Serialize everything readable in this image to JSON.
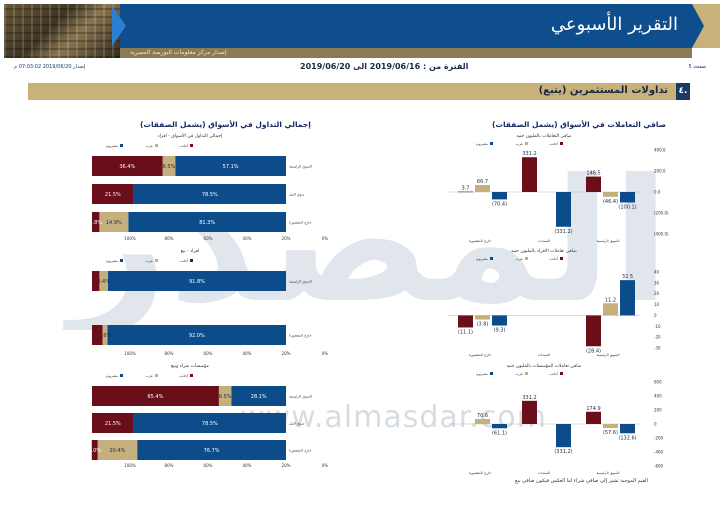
{
  "header": {
    "title": "التقرير الأسبوعي",
    "subtitle_strip": "إصدار مركز معلومات البورصة المصرية",
    "page_label": "صفحة 5",
    "period": "الفترة من : 2019/06/16 الى 2019/06/20",
    "issued": "إصدار 2019/06/20 07:03:02 م"
  },
  "section": {
    "number": "٤.",
    "title": "تداولات المستثمرين   (يتبع)"
  },
  "watermark": {
    "url": "www.almasdar.com",
    "word": "المصدر"
  },
  "left_title": "إجمالي التداول في الأسواق (يشمل الصفقات)",
  "right_title": "صافي التعاملات في الأسواق (يشمل الصفقات)",
  "footnote": "القيم الموجبة تشير إلى صافي شراء اما العكس فيكون صافي بيع",
  "colors": {
    "egyptian": "#0d4c8b",
    "arab": "#c5b07d",
    "foreign": "#6a0f1a"
  },
  "legend": {
    "egyptian": "مصريون",
    "arab": "عرب",
    "foreign": "أجانب"
  },
  "chart_data": [
    {
      "type": "bar",
      "orientation": "horizontal-stacked",
      "title": "إجمالي التداول في الأسواق - افراد",
      "categories": [
        "السوق الرئيسية",
        "سوق النيل",
        "خارج المقصورة"
      ],
      "series": [
        {
          "name": "مصريون",
          "values": [
            57.1,
            78.5,
            81.3
          ]
        },
        {
          "name": "عرب",
          "values": [
            6.5,
            0,
            14.9
          ]
        },
        {
          "name": "أجانب",
          "values": [
            36.4,
            21.5,
            3.8
          ]
        }
      ],
      "value_labels": [
        [
          "57.1%",
          "6.5%",
          "36.4%"
        ],
        [
          "78.5%",
          "",
          "21.5%"
        ],
        [
          "81.3%",
          "14.9%",
          "3.8%"
        ]
      ],
      "xticks": [
        "100%",
        "80%",
        "60%",
        "40%",
        "20%",
        "0%"
      ]
    },
    {
      "type": "bar",
      "orientation": "horizontal-stacked",
      "title": "افراد - بيع",
      "categories": [
        "السوق الرئيسية",
        "خارج المقصورة"
      ],
      "series": [
        {
          "name": "مصريون",
          "values": [
            91.8,
            92.0
          ]
        },
        {
          "name": "عرب",
          "values": [
            4.4,
            2.6
          ]
        },
        {
          "name": "أجانب",
          "values": [
            3.8,
            5.4
          ]
        }
      ],
      "value_labels": [
        [
          "91.8%",
          "4.4%",
          ""
        ],
        [
          "92.0%",
          "2.6%",
          ""
        ]
      ],
      "xticks": [
        "100%",
        "80%",
        "60%",
        "40%",
        "20%",
        "0%"
      ]
    },
    {
      "type": "bar",
      "orientation": "horizontal-stacked",
      "title": "مؤسسات شراء وبيع",
      "categories": [
        "السوق الرئيسية",
        "سوق النيل",
        "خارج المقصورة"
      ],
      "series": [
        {
          "name": "مصريون",
          "values": [
            28.1,
            78.5,
            76.7
          ]
        },
        {
          "name": "عرب",
          "values": [
            6.5,
            0,
            20.4
          ]
        },
        {
          "name": "أجانب",
          "values": [
            65.4,
            21.5,
            3.0
          ]
        }
      ],
      "value_labels": [
        [
          "28.1%",
          "6.5%",
          "65.4%"
        ],
        [
          "78.5%",
          "",
          "21.5%"
        ],
        [
          "76.7%",
          "20.4%",
          "3.0%"
        ]
      ],
      "xticks": [
        "100%",
        "80%",
        "60%",
        "40%",
        "20%",
        "0%"
      ]
    },
    {
      "type": "bar",
      "title": "صافي التعاملات بالمليون جنيه",
      "categories": [
        "خارج المقصورة",
        "السندات",
        "السوق الرئيسية"
      ],
      "series": [
        {
          "name": "مصريون",
          "values": [
            -70.4,
            -331.2,
            -100.1
          ]
        },
        {
          "name": "عرب",
          "values": [
            66.7,
            0,
            -46.4
          ]
        },
        {
          "name": "أجانب",
          "values": [
            3.7,
            331.2,
            146.5
          ]
        }
      ],
      "yticks": [
        "400.0",
        "200.0",
        "0.0",
        "(200.0)",
        "(400.0)"
      ],
      "ylim": [
        -400,
        400
      ]
    },
    {
      "type": "bar",
      "title": "صافي تعاملات الافراد بالمليون جنيه",
      "categories": [
        "خارج المقصورة",
        "السندات",
        "السوق الرئيسية"
      ],
      "series": [
        {
          "name": "مصريون",
          "values": [
            -9.3,
            0,
            32.5
          ]
        },
        {
          "name": "عرب",
          "values": [
            -3.8,
            0,
            11.2
          ]
        },
        {
          "name": "أجانب",
          "values": [
            -11.1,
            0,
            -28.4
          ]
        }
      ],
      "yticks": [
        "40",
        "30",
        "20",
        "10",
        "0",
        "-10",
        "-20",
        "-30"
      ],
      "ylim": [
        -30,
        40
      ]
    },
    {
      "type": "bar",
      "title": "صافي تعاملات المؤسسات بالمليون جنيه",
      "categories": [
        "خارج المقصورة",
        "السندات",
        "السوق الرئيسية"
      ],
      "series": [
        {
          "name": "مصريون",
          "values": [
            -61.1,
            -331.2,
            -132.6
          ]
        },
        {
          "name": "عرب",
          "values": [
            70.6,
            0,
            -57.6
          ]
        },
        {
          "name": "أجانب",
          "values": [
            0,
            331.2,
            174.9
          ]
        }
      ],
      "yticks": [
        "600",
        "400",
        "200",
        "0",
        "-200",
        "-400",
        "-600"
      ],
      "ylim": [
        -600,
        600
      ]
    }
  ]
}
